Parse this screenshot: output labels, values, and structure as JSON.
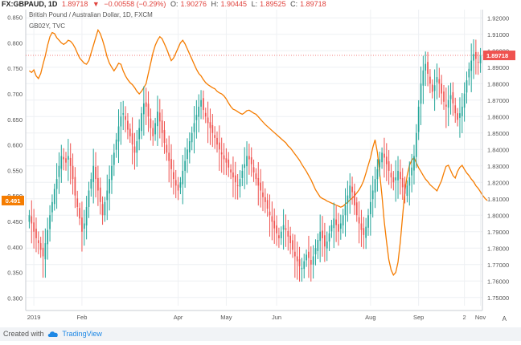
{
  "header": {
    "symbol": "FX:GBPAUD, 1D",
    "last": "1.89718",
    "change": "−0.00558 (−0.29%)",
    "o_label": "O:",
    "o_value": "1.90276",
    "h_label": "H:",
    "h_value": "1.90445",
    "l_label": "L:",
    "l_value": "1.89525",
    "c_label": "C:",
    "c_value": "1.89718"
  },
  "legend": {
    "main": "British Pound / Australian Dollar, 1D, FXCM",
    "overlay": "GB02Y, TVC"
  },
  "footer": {
    "credit": "Created with",
    "brand": "TradingView",
    "scale_button": "A"
  },
  "colors": {
    "up": "#26a69a",
    "down": "#ef5350",
    "overlay_line": "#f57c00",
    "last_price": "#ef5350",
    "grid": "#eef0f3"
  },
  "chart_data": {
    "type": "candlestick",
    "title": "British Pound / Australian Dollar, 1D, FXCM",
    "grid": true,
    "x_tick_labels": [
      "2019",
      "Feb",
      "Apr",
      "May",
      "Jun",
      "Aug",
      "Sep",
      "2",
      "Nov"
    ],
    "right_axis": {
      "range": [
        1.745,
        1.925
      ],
      "ticks": [
        "1.75000",
        "1.76000",
        "1.77000",
        "1.78000",
        "1.79000",
        "1.80000",
        "1.81000",
        "1.82000",
        "1.83000",
        "1.84000",
        "1.85000",
        "1.86000",
        "1.87000",
        "1.88000",
        "1.89000",
        "1.90000",
        "1.91000",
        "1.92000"
      ],
      "last_value_label": "1.89718",
      "last_value": 1.89718
    },
    "left_axis": {
      "range": [
        0.285,
        0.865
      ],
      "ticks": [
        "0.300",
        "0.350",
        "0.400",
        "0.450",
        "0.500",
        "0.550",
        "0.600",
        "0.650",
        "0.700",
        "0.750",
        "0.800",
        "0.850"
      ],
      "last_value_label": "0.491",
      "last_value": 0.491
    },
    "gbpaud_close": [
      1.8,
      1.795,
      1.79,
      1.786,
      1.783,
      1.779,
      1.775,
      1.783,
      1.791,
      1.8,
      1.808,
      1.816,
      1.822,
      1.83,
      1.836,
      1.834,
      1.832,
      1.836,
      1.83,
      1.822,
      1.812,
      1.805,
      1.798,
      1.79,
      1.795,
      1.805,
      1.815,
      1.822,
      1.83,
      1.822,
      1.815,
      1.808,
      1.8,
      1.808,
      1.815,
      1.822,
      1.83,
      1.838,
      1.846,
      1.854,
      1.86,
      1.862,
      1.858,
      1.852,
      1.848,
      1.843,
      1.838,
      1.845,
      1.853,
      1.862,
      1.868,
      1.866,
      1.86,
      1.853,
      1.848,
      1.856,
      1.863,
      1.857,
      1.85,
      1.844,
      1.838,
      1.833,
      1.828,
      1.822,
      1.818,
      1.815,
      1.82,
      1.827,
      1.833,
      1.84,
      1.845,
      1.85,
      1.856,
      1.861,
      1.866,
      1.87,
      1.864,
      1.86,
      1.856,
      1.853,
      1.85,
      1.847,
      1.843,
      1.84,
      1.837,
      1.834,
      1.832,
      1.829,
      1.826,
      1.823,
      1.82,
      1.818,
      1.822,
      1.827,
      1.831,
      1.836,
      1.834,
      1.831,
      1.826,
      1.822,
      1.818,
      1.815,
      1.811,
      1.808,
      1.804,
      1.8,
      1.796,
      1.792,
      1.789,
      1.786,
      1.79,
      1.794,
      1.791,
      1.787,
      1.783,
      1.779,
      1.775,
      1.772,
      1.769,
      1.768,
      1.772,
      1.776,
      1.774,
      1.77,
      1.775,
      1.78,
      1.785,
      1.79,
      1.786,
      1.781,
      1.784,
      1.789,
      1.794,
      1.798,
      1.794,
      1.79,
      1.795,
      1.8,
      1.806,
      1.812,
      1.818,
      1.814,
      1.806,
      1.8,
      1.795,
      1.791,
      1.788,
      1.793,
      1.8,
      1.808,
      1.815,
      1.822,
      1.828,
      1.834,
      1.838,
      1.835,
      1.831,
      1.827,
      1.823,
      1.82,
      1.823,
      1.827,
      1.822,
      1.817,
      1.813,
      1.818,
      1.823,
      1.829,
      1.836,
      1.85,
      1.866,
      1.88,
      1.888,
      1.892,
      1.886,
      1.88,
      1.875,
      1.879,
      1.884,
      1.88,
      1.874,
      1.869,
      1.866,
      1.87,
      1.873,
      1.868,
      1.862,
      1.858,
      1.862,
      1.866,
      1.874,
      1.882,
      1.889,
      1.894,
      1.898,
      1.895,
      1.893,
      1.897
    ],
    "gb02y": [
      0.745,
      0.742,
      0.747,
      0.735,
      0.73,
      0.74,
      0.758,
      0.775,
      0.795,
      0.812,
      0.82,
      0.818,
      0.81,
      0.805,
      0.8,
      0.797,
      0.8,
      0.805,
      0.803,
      0.798,
      0.79,
      0.78,
      0.77,
      0.765,
      0.76,
      0.758,
      0.765,
      0.78,
      0.795,
      0.81,
      0.825,
      0.818,
      0.805,
      0.79,
      0.772,
      0.76,
      0.752,
      0.745,
      0.752,
      0.76,
      0.758,
      0.745,
      0.735,
      0.728,
      0.722,
      0.718,
      0.712,
      0.705,
      0.7,
      0.705,
      0.712,
      0.72,
      0.74,
      0.76,
      0.78,
      0.795,
      0.805,
      0.812,
      0.808,
      0.798,
      0.788,
      0.776,
      0.765,
      0.77,
      0.78,
      0.79,
      0.8,
      0.805,
      0.798,
      0.788,
      0.778,
      0.768,
      0.758,
      0.748,
      0.74,
      0.735,
      0.728,
      0.722,
      0.718,
      0.715,
      0.712,
      0.71,
      0.705,
      0.702,
      0.7,
      0.696,
      0.69,
      0.682,
      0.675,
      0.67,
      0.668,
      0.665,
      0.662,
      0.66,
      0.663,
      0.667,
      0.668,
      0.665,
      0.662,
      0.66,
      0.655,
      0.65,
      0.645,
      0.64,
      0.636,
      0.632,
      0.628,
      0.624,
      0.62,
      0.616,
      0.612,
      0.608,
      0.604,
      0.598,
      0.594,
      0.588,
      0.582,
      0.576,
      0.57,
      0.562,
      0.555,
      0.548,
      0.54,
      0.532,
      0.522,
      0.512,
      0.505,
      0.498,
      0.495,
      0.493,
      0.49,
      0.488,
      0.486,
      0.484,
      0.482,
      0.48,
      0.478,
      0.48,
      0.484,
      0.488,
      0.492,
      0.496,
      0.5,
      0.506,
      0.512,
      0.52,
      0.53,
      0.545,
      0.56,
      0.575,
      0.595,
      0.61,
      0.585,
      0.545,
      0.5,
      0.45,
      0.41,
      0.375,
      0.355,
      0.345,
      0.35,
      0.37,
      0.41,
      0.46,
      0.51,
      0.54,
      0.56,
      0.57,
      0.575,
      0.565,
      0.555,
      0.548,
      0.54,
      0.533,
      0.528,
      0.522,
      0.518,
      0.514,
      0.51,
      0.52,
      0.53,
      0.545,
      0.558,
      0.56,
      0.55,
      0.54,
      0.535,
      0.548,
      0.556,
      0.56,
      0.552,
      0.545,
      0.54,
      0.533,
      0.528,
      0.52,
      0.515,
      0.508,
      0.501,
      0.495,
      0.491
    ]
  }
}
